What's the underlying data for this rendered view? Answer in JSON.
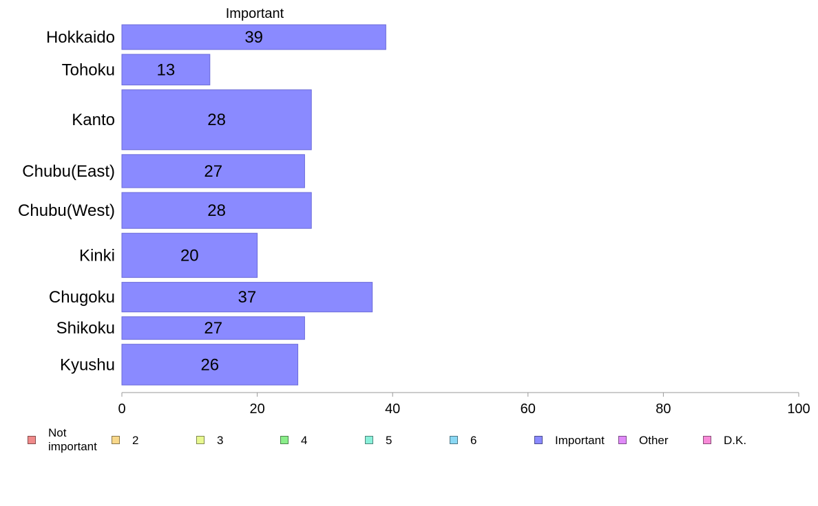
{
  "chart_data": {
    "type": "bar",
    "orientation": "horizontal",
    "title": "Important",
    "xlabel": "",
    "ylabel": "",
    "categories": [
      "Hokkaido",
      "Tohoku",
      "Kanto",
      "Chubu(East)",
      "Chubu(West)",
      "Kinki",
      "Chugoku",
      "Shikoku",
      "Kyushu"
    ],
    "values": [
      39,
      13,
      28,
      27,
      28,
      20,
      37,
      27,
      26
    ],
    "relative_widths": [
      0.71,
      0.88,
      1.72,
      0.95,
      1.03,
      1.27,
      0.85,
      0.65,
      1.17
    ],
    "xlim": [
      0,
      100
    ],
    "xticks": [
      0,
      20,
      40,
      60,
      80,
      100
    ],
    "grid": false,
    "legend_position": "bottom",
    "bar_color": "#8a8aff",
    "bar_border_color": "#6a6ad8"
  },
  "legend": [
    {
      "label": "Not important",
      "color": "#f08a8a"
    },
    {
      "label": "2",
      "color": "#f8d88a"
    },
    {
      "label": "3",
      "color": "#e8f890"
    },
    {
      "label": "4",
      "color": "#8aee8a"
    },
    {
      "label": "5",
      "color": "#8af0da"
    },
    {
      "label": "6",
      "color": "#8ad8f4"
    },
    {
      "label": "Important",
      "color": "#8a8aff"
    },
    {
      "label": "Other",
      "color": "#e08af8"
    },
    {
      "label": "D.K.",
      "color": "#f88ad8"
    }
  ]
}
